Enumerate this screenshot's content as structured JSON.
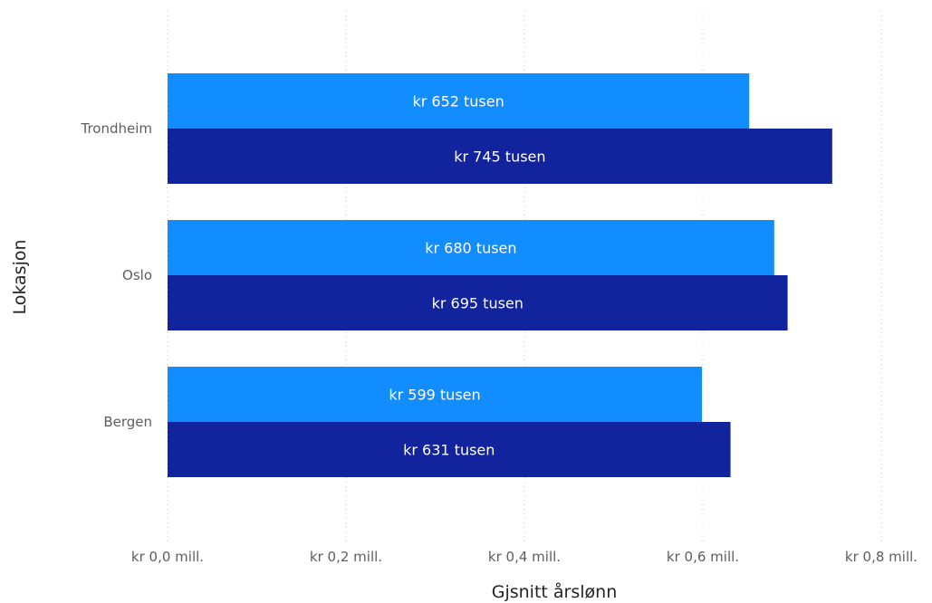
{
  "chart_data": {
    "type": "bar",
    "orientation": "horizontal",
    "title": "",
    "xlabel": "Gjsnitt årslønn",
    "ylabel": "Lokasjon",
    "categories": [
      "Trondheim",
      "Oslo",
      "Bergen"
    ],
    "series": [
      {
        "values": [
          652,
          680,
          599
        ],
        "labels": [
          "kr 652 tusen",
          "kr 680 tusen",
          "kr 599 tusen"
        ],
        "color": "#118DFF"
      },
      {
        "values": [
          745,
          695,
          631
        ],
        "labels": [
          "kr 745 tusen",
          "kr 695 tusen",
          "kr 631 tusen"
        ],
        "color": "#12239E"
      }
    ],
    "value_unit": "thousand kr",
    "xlim": [
      0,
      800
    ],
    "xticks": [
      0,
      200,
      400,
      600,
      800
    ],
    "xtick_labels": [
      "kr 0,0 mill.",
      "kr 0,2 mill.",
      "kr 0,4 mill.",
      "kr 0,6 mill.",
      "kr 0,8 mill."
    ],
    "grid": true,
    "legend": "none"
  }
}
